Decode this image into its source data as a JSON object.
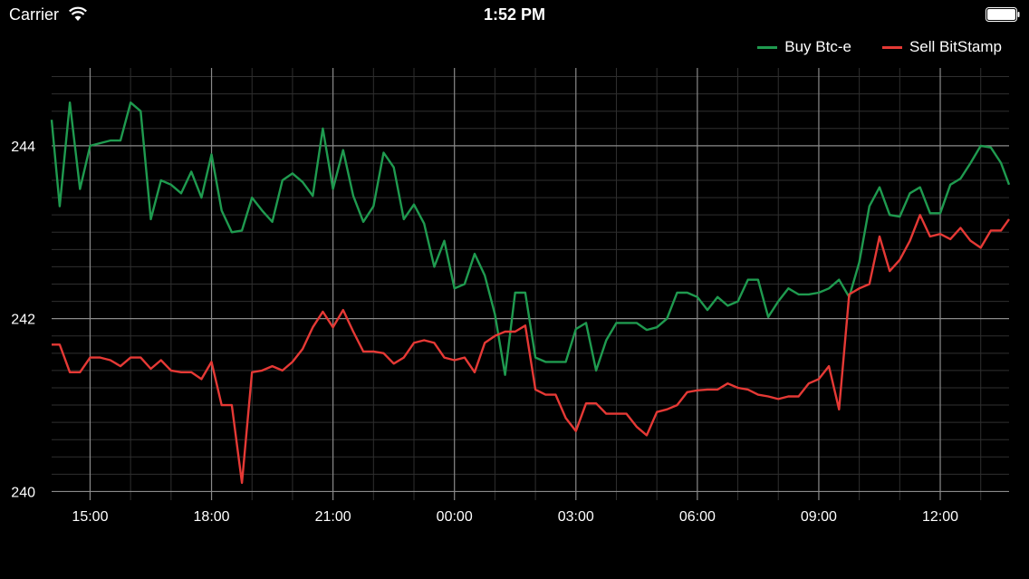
{
  "status_bar": {
    "carrier": "Carrier",
    "time": "1:52 PM"
  },
  "colors": {
    "buy": "#1f9a4f",
    "sell": "#e53935",
    "grid_major": "#8a8a8a",
    "grid_minor": "#2f2f2f"
  },
  "chart_data": {
    "type": "line",
    "xlabel": "",
    "ylabel": "",
    "ylim": [
      239.9,
      244.9
    ],
    "yticks": [
      240,
      242,
      244
    ],
    "xticks": [
      "15:00",
      "18:00",
      "21:00",
      "00:00",
      "03:00",
      "06:00",
      "09:00",
      "12:00"
    ],
    "x_range_hours": [
      14.05,
      37.7
    ],
    "grid": true,
    "legend_position": "top-right",
    "series": [
      {
        "name": "Buy Btc-e",
        "color": "#1f9a4f",
        "points": [
          [
            14.05,
            244.3
          ],
          [
            14.25,
            243.3
          ],
          [
            14.5,
            244.5
          ],
          [
            14.75,
            243.5
          ],
          [
            15.0,
            244.0
          ],
          [
            15.25,
            244.03
          ],
          [
            15.5,
            244.06
          ],
          [
            15.75,
            244.06
          ],
          [
            16.0,
            244.5
          ],
          [
            16.25,
            244.4
          ],
          [
            16.5,
            243.15
          ],
          [
            16.75,
            243.6
          ],
          [
            17.0,
            243.55
          ],
          [
            17.25,
            243.45
          ],
          [
            17.5,
            243.7
          ],
          [
            17.75,
            243.4
          ],
          [
            18.0,
            243.9
          ],
          [
            18.25,
            243.25
          ],
          [
            18.5,
            243.0
          ],
          [
            18.75,
            243.02
          ],
          [
            19.0,
            243.4
          ],
          [
            19.25,
            243.25
          ],
          [
            19.5,
            243.12
          ],
          [
            19.75,
            243.6
          ],
          [
            20.0,
            243.68
          ],
          [
            20.25,
            243.58
          ],
          [
            20.5,
            243.42
          ],
          [
            20.75,
            244.2
          ],
          [
            21.0,
            243.5
          ],
          [
            21.25,
            243.95
          ],
          [
            21.5,
            243.42
          ],
          [
            21.75,
            243.12
          ],
          [
            22.0,
            243.3
          ],
          [
            22.25,
            243.92
          ],
          [
            22.5,
            243.75
          ],
          [
            22.75,
            243.15
          ],
          [
            23.0,
            243.32
          ],
          [
            23.25,
            243.1
          ],
          [
            23.5,
            242.6
          ],
          [
            23.75,
            242.9
          ],
          [
            24.0,
            242.35
          ],
          [
            24.25,
            242.4
          ],
          [
            24.5,
            242.75
          ],
          [
            24.75,
            242.5
          ],
          [
            25.0,
            242.05
          ],
          [
            25.25,
            241.35
          ],
          [
            25.5,
            242.3
          ],
          [
            25.75,
            242.3
          ],
          [
            26.0,
            241.55
          ],
          [
            26.25,
            241.5
          ],
          [
            26.5,
            241.5
          ],
          [
            26.75,
            241.5
          ],
          [
            27.0,
            241.88
          ],
          [
            27.25,
            241.95
          ],
          [
            27.5,
            241.4
          ],
          [
            27.75,
            241.75
          ],
          [
            28.0,
            241.95
          ],
          [
            28.25,
            241.95
          ],
          [
            28.5,
            241.95
          ],
          [
            28.75,
            241.87
          ],
          [
            29.0,
            241.9
          ],
          [
            29.25,
            242.0
          ],
          [
            29.5,
            242.3
          ],
          [
            29.75,
            242.3
          ],
          [
            30.0,
            242.25
          ],
          [
            30.25,
            242.1
          ],
          [
            30.5,
            242.25
          ],
          [
            30.75,
            242.15
          ],
          [
            31.0,
            242.2
          ],
          [
            31.25,
            242.45
          ],
          [
            31.5,
            242.45
          ],
          [
            31.75,
            242.02
          ],
          [
            32.0,
            242.2
          ],
          [
            32.25,
            242.35
          ],
          [
            32.5,
            242.28
          ],
          [
            32.75,
            242.28
          ],
          [
            33.0,
            242.3
          ],
          [
            33.25,
            242.35
          ],
          [
            33.5,
            242.45
          ],
          [
            33.75,
            242.25
          ],
          [
            34.0,
            242.65
          ],
          [
            34.25,
            243.3
          ],
          [
            34.5,
            243.52
          ],
          [
            34.75,
            243.2
          ],
          [
            35.0,
            243.18
          ],
          [
            35.25,
            243.45
          ],
          [
            35.5,
            243.52
          ],
          [
            35.75,
            243.22
          ],
          [
            36.0,
            243.22
          ],
          [
            36.25,
            243.55
          ],
          [
            36.5,
            243.62
          ],
          [
            36.75,
            243.8
          ],
          [
            37.0,
            244.0
          ],
          [
            37.25,
            243.98
          ],
          [
            37.5,
            243.8
          ],
          [
            37.7,
            243.55
          ]
        ]
      },
      {
        "name": "Sell BitStamp",
        "color": "#e53935",
        "points": [
          [
            14.05,
            241.7
          ],
          [
            14.25,
            241.7
          ],
          [
            14.5,
            241.38
          ],
          [
            14.75,
            241.38
          ],
          [
            15.0,
            241.55
          ],
          [
            15.25,
            241.55
          ],
          [
            15.5,
            241.52
          ],
          [
            15.75,
            241.45
          ],
          [
            16.0,
            241.55
          ],
          [
            16.25,
            241.55
          ],
          [
            16.5,
            241.42
          ],
          [
            16.75,
            241.52
          ],
          [
            17.0,
            241.4
          ],
          [
            17.25,
            241.38
          ],
          [
            17.5,
            241.38
          ],
          [
            17.75,
            241.3
          ],
          [
            18.0,
            241.5
          ],
          [
            18.25,
            241.0
          ],
          [
            18.5,
            241.0
          ],
          [
            18.75,
            240.1
          ],
          [
            19.0,
            241.38
          ],
          [
            19.25,
            241.4
          ],
          [
            19.5,
            241.45
          ],
          [
            19.75,
            241.4
          ],
          [
            20.0,
            241.5
          ],
          [
            20.25,
            241.65
          ],
          [
            20.5,
            241.9
          ],
          [
            20.75,
            242.08
          ],
          [
            21.0,
            241.9
          ],
          [
            21.25,
            242.1
          ],
          [
            21.5,
            241.85
          ],
          [
            21.75,
            241.62
          ],
          [
            22.0,
            241.62
          ],
          [
            22.25,
            241.6
          ],
          [
            22.5,
            241.48
          ],
          [
            22.75,
            241.55
          ],
          [
            23.0,
            241.72
          ],
          [
            23.25,
            241.75
          ],
          [
            23.5,
            241.72
          ],
          [
            23.75,
            241.55
          ],
          [
            24.0,
            241.52
          ],
          [
            24.25,
            241.55
          ],
          [
            24.5,
            241.38
          ],
          [
            24.75,
            241.72
          ],
          [
            25.0,
            241.8
          ],
          [
            25.25,
            241.85
          ],
          [
            25.5,
            241.85
          ],
          [
            25.75,
            241.92
          ],
          [
            26.0,
            241.18
          ],
          [
            26.25,
            241.12
          ],
          [
            26.5,
            241.12
          ],
          [
            26.75,
            240.85
          ],
          [
            27.0,
            240.7
          ],
          [
            27.25,
            241.02
          ],
          [
            27.5,
            241.02
          ],
          [
            27.75,
            240.9
          ],
          [
            28.0,
            240.9
          ],
          [
            28.25,
            240.9
          ],
          [
            28.5,
            240.75
          ],
          [
            28.75,
            240.65
          ],
          [
            29.0,
            240.92
          ],
          [
            29.25,
            240.95
          ],
          [
            29.5,
            241.0
          ],
          [
            29.75,
            241.15
          ],
          [
            30.0,
            241.17
          ],
          [
            30.25,
            241.18
          ],
          [
            30.5,
            241.18
          ],
          [
            30.75,
            241.25
          ],
          [
            31.0,
            241.2
          ],
          [
            31.25,
            241.18
          ],
          [
            31.5,
            241.12
          ],
          [
            31.75,
            241.1
          ],
          [
            32.0,
            241.07
          ],
          [
            32.25,
            241.1
          ],
          [
            32.5,
            241.1
          ],
          [
            32.75,
            241.25
          ],
          [
            33.0,
            241.3
          ],
          [
            33.25,
            241.45
          ],
          [
            33.5,
            240.95
          ],
          [
            33.75,
            242.28
          ],
          [
            34.0,
            242.35
          ],
          [
            34.25,
            242.4
          ],
          [
            34.5,
            242.95
          ],
          [
            34.75,
            242.55
          ],
          [
            35.0,
            242.68
          ],
          [
            35.25,
            242.9
          ],
          [
            35.5,
            243.2
          ],
          [
            35.75,
            242.95
          ],
          [
            36.0,
            242.98
          ],
          [
            36.25,
            242.92
          ],
          [
            36.5,
            243.05
          ],
          [
            36.75,
            242.9
          ],
          [
            37.0,
            242.82
          ],
          [
            37.25,
            243.02
          ],
          [
            37.5,
            243.02
          ],
          [
            37.7,
            243.15
          ]
        ]
      }
    ]
  }
}
